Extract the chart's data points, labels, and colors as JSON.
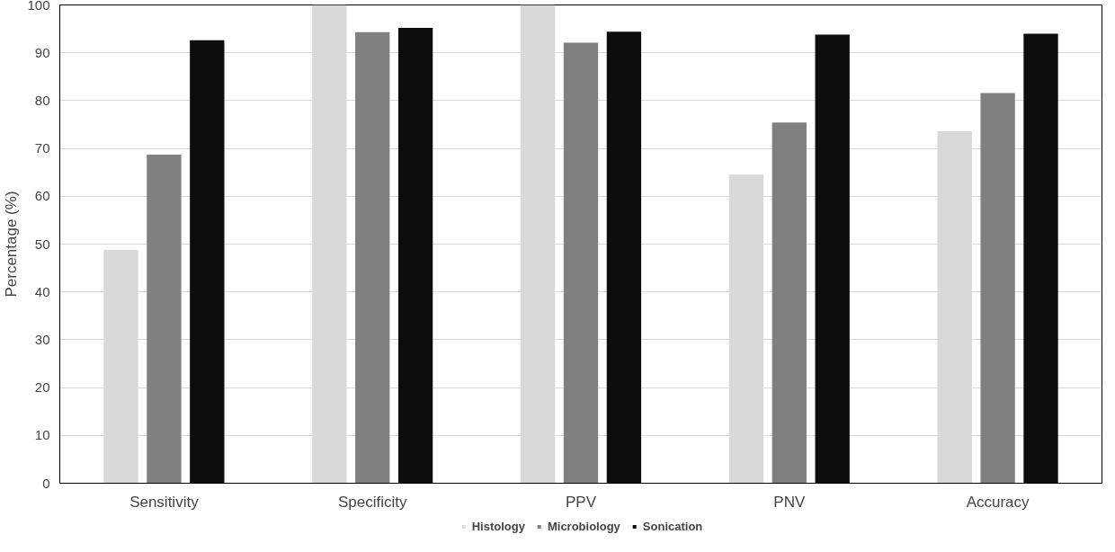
{
  "chart_data": {
    "type": "bar",
    "ylabel": "Percentage (%)",
    "categories": [
      "Sensitivity",
      "Specificity",
      "PPV",
      "PNV",
      "Accuracy"
    ],
    "series": [
      {
        "name": "Histology",
        "color": "#d9d9d9",
        "values": [
          48.8,
          100,
          100,
          64.5,
          73.6
        ]
      },
      {
        "name": "Microbiology",
        "color": "#808080",
        "values": [
          68.7,
          94.3,
          92.1,
          75.4,
          81.6
        ]
      },
      {
        "name": "Sonication",
        "color": "#0d0d0d",
        "values": [
          92.6,
          95.2,
          94.4,
          93.8,
          94.0
        ]
      }
    ],
    "ylim": [
      0,
      100
    ],
    "yticks": [
      0,
      10,
      20,
      30,
      40,
      50,
      60,
      70,
      80,
      90,
      100
    ],
    "grid": "y",
    "legend": "bottom"
  }
}
